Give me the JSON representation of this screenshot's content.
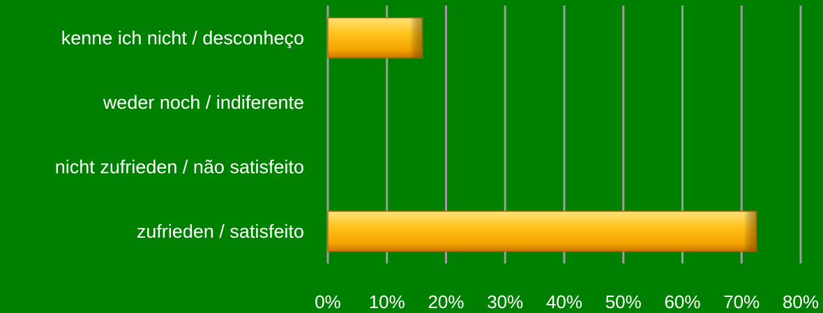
{
  "chart_data": {
    "type": "bar",
    "orientation": "horizontal",
    "categories": [
      "kenne ich nicht / desconheço",
      "weder noch / indiferente",
      "nicht zufrieden / não satisfeito",
      "zufrieden / satisfeito"
    ],
    "values": [
      16,
      0,
      0,
      72.5
    ],
    "xlim": [
      0,
      80
    ],
    "x_ticks": [
      "0%",
      "10%",
      "20%",
      "30%",
      "40%",
      "50%",
      "60%",
      "70%",
      "80%"
    ],
    "grid": "vertical",
    "colors": {
      "background": "#008000",
      "bar": "#FFB400",
      "bar_edge": "#B36B00",
      "grid": "#9E9E9E",
      "text": "#FFFFFF"
    }
  }
}
